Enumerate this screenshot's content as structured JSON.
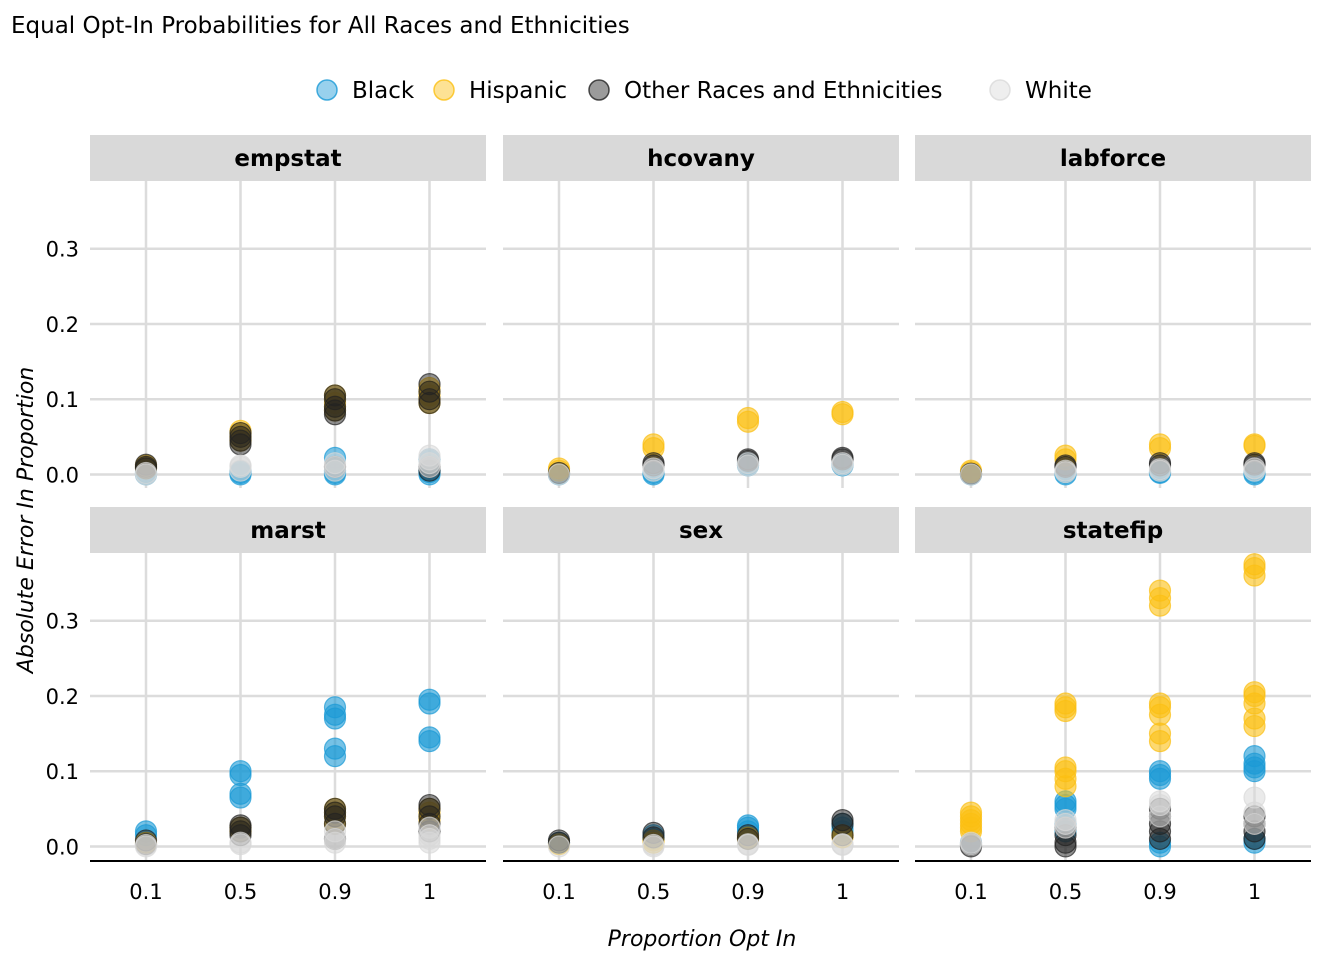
{
  "chart_data": {
    "type": "scatter",
    "title": "Equal Opt-In Probabilities for All Races and Ethnicities",
    "xlabel": "Proportion Opt In",
    "ylabel": "Absolute Error In Proportion",
    "x_categories": [
      "0.1",
      "0.5",
      "0.9",
      "1"
    ],
    "yticks": [
      "0.0",
      "0.1",
      "0.2",
      "0.3"
    ],
    "ylim": [
      -0.018,
      0.39
    ],
    "grid": true,
    "legend_position": "top",
    "series": [
      {
        "name": "Black",
        "color": "#1a9ad6"
      },
      {
        "name": "Hispanic",
        "color": "#fbbf12"
      },
      {
        "name": "Other Races and Ethnicities",
        "color": "#222222"
      },
      {
        "name": "White",
        "color": "#d9d9d9"
      }
    ],
    "panels": [
      {
        "name": "empstat",
        "points": [
          {
            "s": 0,
            "x": [
              0.0,
              0.003,
              0.005,
              0.0
            ],
            "y": [
              [
                0.0,
                0.003
              ],
              [
                0.0,
                0.004,
                0.002
              ],
              [
                0.0,
                0.022,
                0.005,
                0.002
              ],
              [
                0.0,
                0.005,
                0.02,
                0.003
              ]
            ]
          },
          {
            "s": 1,
            "y": [
              [
                0.01,
                0.012,
                0.008
              ],
              [
                0.05,
                0.055,
                0.045,
                0.058
              ],
              [
                0.09,
                0.1,
                0.105,
                0.085,
                0.095
              ],
              [
                0.1,
                0.105,
                0.095,
                0.11,
                0.115
              ]
            ]
          },
          {
            "s": 2,
            "y": [
              [
                0.01,
                0.013,
                0.008
              ],
              [
                0.045,
                0.05,
                0.055,
                0.04
              ],
              [
                0.08,
                0.09,
                0.1,
                0.105,
                0.085,
                0.01
              ],
              [
                0.1,
                0.11,
                0.12,
                0.095,
                0.01,
                0.005
              ]
            ]
          },
          {
            "s": 3,
            "y": [
              [
                0.0,
                0.002
              ],
              [
                0.005,
                0.01,
                0.012
              ],
              [
                0.005,
                0.01,
                0.015
              ],
              [
                0.02,
                0.025,
                0.01,
                0.015
              ]
            ]
          }
        ]
      },
      {
        "name": "hcovany",
        "points": [
          {
            "s": 0,
            "y": [
              [
                0.0
              ],
              [
                0.0,
                0.002
              ],
              [
                0.012,
                0.015
              ],
              [
                0.012,
                0.014
              ]
            ]
          },
          {
            "s": 1,
            "y": [
              [
                0.005,
                0.008
              ],
              [
                0.035,
                0.04
              ],
              [
                0.07,
                0.075
              ],
              [
                0.08,
                0.083
              ]
            ]
          },
          {
            "s": 2,
            "y": [
              [
                0.002
              ],
              [
                0.012,
                0.015
              ],
              [
                0.018,
                0.02
              ],
              [
                0.02,
                0.022
              ]
            ]
          },
          {
            "s": 3,
            "y": [
              [
                0.0
              ],
              [
                0.005,
                0.008
              ],
              [
                0.015,
                0.012
              ],
              [
                0.015,
                0.013
              ]
            ]
          }
        ]
      },
      {
        "name": "labforce",
        "points": [
          {
            "s": 0,
            "y": [
              [
                0.0
              ],
              [
                0.0,
                0.002
              ],
              [
                0.003,
                0.002
              ],
              [
                0.0,
                0.002
              ]
            ]
          },
          {
            "s": 1,
            "y": [
              [
                0.003,
                0.005
              ],
              [
                0.02,
                0.025
              ],
              [
                0.035,
                0.04
              ],
              [
                0.038,
                0.04
              ]
            ]
          },
          {
            "s": 2,
            "y": [
              [
                0.001
              ],
              [
                0.01,
                0.012
              ],
              [
                0.012,
                0.015
              ],
              [
                0.015,
                0.013
              ]
            ]
          },
          {
            "s": 3,
            "y": [
              [
                0.0
              ],
              [
                0.005,
                0.003
              ],
              [
                0.005,
                0.007
              ],
              [
                0.005,
                0.008
              ]
            ]
          }
        ]
      },
      {
        "name": "marst",
        "points": [
          {
            "s": 0,
            "y": [
              [
                0.015,
                0.02
              ],
              [
                0.07,
                0.065,
                0.095,
                0.1
              ],
              [
                0.12,
                0.13,
                0.17,
                0.175,
                0.185
              ],
              [
                0.14,
                0.145,
                0.19,
                0.195
              ]
            ]
          },
          {
            "s": 1,
            "y": [
              [
                0.005
              ],
              [
                0.02,
                0.025
              ],
              [
                0.04,
                0.045,
                0.05,
                0.03
              ],
              [
                0.04,
                0.045,
                0.05,
                0.035
              ]
            ]
          },
          {
            "s": 2,
            "y": [
              [
                0.003,
                0.008
              ],
              [
                0.02,
                0.025,
                0.028,
                0.015
              ],
              [
                0.03,
                0.04,
                0.05,
                0.045,
                0.01
              ],
              [
                0.03,
                0.04,
                0.05,
                0.055,
                0.02
              ]
            ]
          },
          {
            "s": 3,
            "y": [
              [
                0.0,
                0.002
              ],
              [
                0.003,
                0.005
              ],
              [
                0.005,
                0.01,
                0.02
              ],
              [
                0.005,
                0.01,
                0.025,
                0.015
              ]
            ]
          }
        ]
      },
      {
        "name": "sex",
        "points": [
          {
            "s": 0,
            "y": [
              [
                0.005
              ],
              [
                0.01,
                0.015
              ],
              [
                0.02,
                0.025,
                0.028
              ],
              [
                0.02,
                0.025,
                0.03
              ]
            ]
          },
          {
            "s": 1,
            "y": [
              [
                0.003
              ],
              [
                0.005,
                0.008
              ],
              [
                0.01,
                0.012
              ],
              [
                0.012,
                0.015
              ]
            ]
          },
          {
            "s": 2,
            "y": [
              [
                0.005,
                0.008
              ],
              [
                0.012,
                0.018
              ],
              [
                0.01,
                0.015
              ],
              [
                0.015,
                0.035,
                0.03
              ]
            ]
          },
          {
            "s": 3,
            "y": [
              [
                0.0
              ],
              [
                0.0,
                0.002
              ],
              [
                0.002,
                0.003
              ],
              [
                0.003,
                0.002
              ]
            ]
          }
        ]
      },
      {
        "name": "statefip",
        "points": [
          {
            "s": 0,
            "y": [
              [
                0.005
              ],
              [
                0.02,
                0.03,
                0.05,
                0.055,
                0.06
              ],
              [
                0.0,
                0.005,
                0.09,
                0.095,
                0.1
              ],
              [
                0.005,
                0.01,
                0.1,
                0.105,
                0.11,
                0.12
              ]
            ]
          },
          {
            "s": 1,
            "y": [
              [
                0.02,
                0.025,
                0.03,
                0.035,
                0.04,
                0.045
              ],
              [
                0.08,
                0.09,
                0.1,
                0.105,
                0.18,
                0.185,
                0.19
              ],
              [
                0.14,
                0.15,
                0.175,
                0.185,
                0.19,
                0.32,
                0.33,
                0.34
              ],
              [
                0.16,
                0.17,
                0.19,
                0.2,
                0.205,
                0.36,
                0.37,
                0.375
              ]
            ]
          },
          {
            "s": 2,
            "y": [
              [
                0.0,
                0.003
              ],
              [
                0.0,
                0.005,
                0.015,
                0.025
              ],
              [
                0.01,
                0.02,
                0.03,
                0.04,
                0.05
              ],
              [
                0.01,
                0.02,
                0.03,
                0.04
              ]
            ]
          },
          {
            "s": 3,
            "y": [
              [
                0.003,
                0.005
              ],
              [
                0.025,
                0.03,
                0.035
              ],
              [
                0.04,
                0.055,
                0.06
              ],
              [
                0.03,
                0.045,
                0.065
              ]
            ]
          }
        ]
      }
    ]
  }
}
